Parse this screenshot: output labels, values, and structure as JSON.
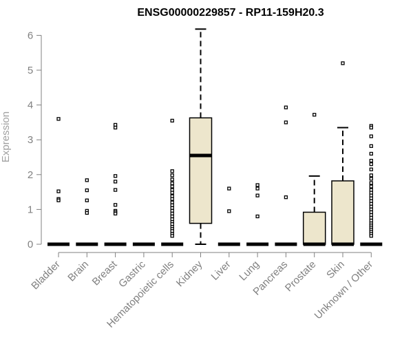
{
  "chart_data": {
    "type": "box",
    "title": "ENSG00000229857 - RP11-159H20.3",
    "xlabel": "",
    "ylabel": "Expression",
    "ylim": [
      0,
      6.2
    ],
    "yticks": [
      "0",
      "1",
      "2",
      "3",
      "4",
      "5",
      "6"
    ],
    "box_fill": "#ede6cc",
    "outlier_color": "#000000",
    "categories": [
      "Bladder",
      "Brain",
      "Breast",
      "Gastric",
      "Hematopoietic cells",
      "Kidney",
      "Liver",
      "Lung",
      "Pancreas",
      "Prostate",
      "Skin",
      "Unknown / Other"
    ],
    "boxes": [
      {
        "name": "Bladder",
        "q1": 0,
        "median": 0,
        "q3": 0,
        "whisker_low": 0,
        "whisker_high": 0,
        "outliers": [
          3.6,
          1.52,
          1.3,
          1.26
        ]
      },
      {
        "name": "Brain",
        "q1": 0,
        "median": 0,
        "q3": 0,
        "whisker_low": 0,
        "whisker_high": 0,
        "outliers": [
          1.84,
          1.55,
          1.26,
          0.96,
          0.9
        ]
      },
      {
        "name": "Breast",
        "q1": 0,
        "median": 0,
        "q3": 0,
        "whisker_low": 0,
        "whisker_high": 0,
        "outliers": [
          3.43,
          3.35,
          1.96,
          1.8,
          1.56,
          1.13,
          0.96,
          0.92,
          0.88
        ]
      },
      {
        "name": "Gastric",
        "q1": 0,
        "median": 0,
        "q3": 0,
        "whisker_low": 0,
        "whisker_high": 0,
        "outliers": []
      },
      {
        "name": "Hematopoietic cells",
        "q1": 0,
        "median": 0,
        "q3": 0,
        "whisker_low": 0,
        "whisker_high": 0,
        "outliers": [
          3.55,
          2.1,
          1.98,
          1.86,
          1.75,
          1.66,
          1.56,
          1.48,
          1.38,
          1.3,
          1.2,
          1.12,
          1.04,
          0.96,
          0.88,
          0.8,
          0.72,
          0.64,
          0.58,
          0.5,
          0.44,
          0.38,
          0.3,
          0.24
        ]
      },
      {
        "name": "Kidney",
        "q1": 0.6,
        "median": 2.55,
        "q3": 3.63,
        "whisker_low": 0,
        "whisker_high": 6.18,
        "outliers": []
      },
      {
        "name": "Liver",
        "q1": 0,
        "median": 0,
        "q3": 0,
        "whisker_low": 0,
        "whisker_high": 0,
        "outliers": [
          1.6,
          0.95
        ]
      },
      {
        "name": "Lung",
        "q1": 0,
        "median": 0,
        "q3": 0,
        "whisker_low": 0,
        "whisker_high": 0,
        "outliers": [
          1.7,
          1.6,
          1.4,
          0.8
        ]
      },
      {
        "name": "Pancreas",
        "q1": 0,
        "median": 0,
        "q3": 0,
        "whisker_low": 0,
        "whisker_high": 0,
        "outliers": [
          3.93,
          3.5,
          1.35
        ]
      },
      {
        "name": "Prostate",
        "q1": 0,
        "median": 0,
        "q3": 0.92,
        "whisker_low": 0,
        "whisker_high": 1.96,
        "outliers": [
          3.72
        ]
      },
      {
        "name": "Skin",
        "q1": 0,
        "median": 0,
        "q3": 1.82,
        "whisker_low": 0,
        "whisker_high": 3.35,
        "outliers": [
          5.2
        ]
      },
      {
        "name": "Unknown / Other",
        "q1": 0,
        "median": 0,
        "q3": 0,
        "whisker_low": 0,
        "whisker_high": 0,
        "outliers": [
          3.4,
          3.35,
          3.1,
          2.82,
          2.6,
          2.4,
          2.3,
          2.15,
          1.98,
          1.88,
          1.76,
          1.66,
          1.56,
          1.48,
          1.4,
          1.32,
          1.24,
          1.16,
          1.08,
          1.0,
          0.92,
          0.84,
          0.76,
          0.68,
          0.6,
          0.54,
          0.48,
          0.42,
          0.36,
          0.3,
          0.24
        ]
      }
    ]
  }
}
